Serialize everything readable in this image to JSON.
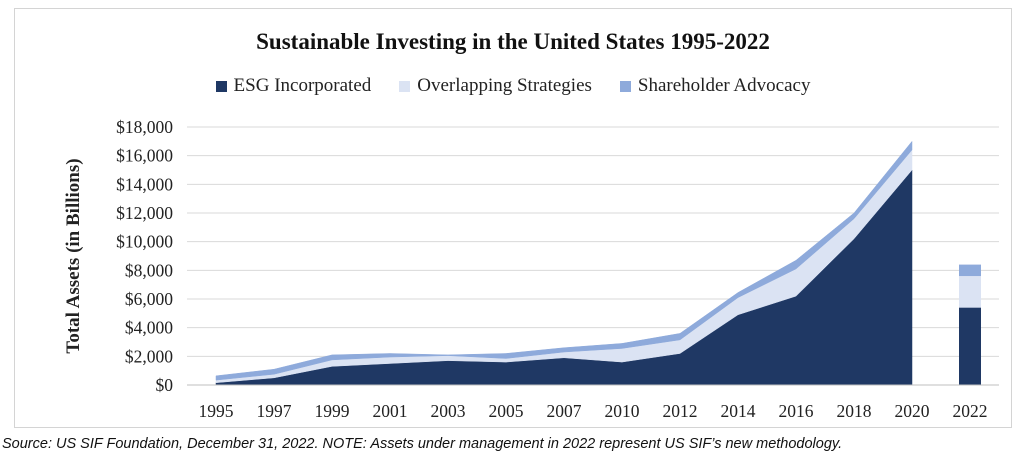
{
  "chart_data": {
    "type": "area",
    "title": "Sustainable Investing in the United States 1995-2022",
    "xlabel": "",
    "ylabel": "Total Assets (in Billions)",
    "categories": [
      "1995",
      "1997",
      "1999",
      "2001",
      "2003",
      "2005",
      "2007",
      "2010",
      "2012",
      "2014",
      "2016",
      "2018",
      "2020",
      "2022"
    ],
    "ylim": [
      0,
      18000
    ],
    "yticks": [
      0,
      2000,
      4000,
      6000,
      8000,
      10000,
      12000,
      14000,
      16000,
      18000
    ],
    "ytick_labels": [
      "$0",
      "$2,000",
      "$4,000",
      "$6,000",
      "$8,000",
      "$10,000",
      "$12,000",
      "$14,000",
      "$16,000",
      "$18,000"
    ],
    "grid": true,
    "legend_position": "top",
    "series": [
      {
        "name": "ESG Incorporated",
        "color": "#1f3864",
        "values": [
          160,
          500,
          1300,
          1500,
          1700,
          1600,
          1900,
          1600,
          2200,
          4900,
          6200,
          10200,
          15000,
          5400
        ]
      },
      {
        "name": "Overlapping Strategies",
        "color": "#dbe3f3",
        "values": [
          180,
          250,
          450,
          450,
          350,
          250,
          400,
          950,
          950,
          1200,
          1900,
          1400,
          1400,
          2200
        ]
      },
      {
        "name": "Shareholder Advocacy",
        "color": "#8eaadb",
        "values": [
          300,
          350,
          350,
          250,
          50,
          350,
          300,
          350,
          450,
          350,
          600,
          400,
          600,
          800
        ]
      }
    ],
    "note": "Year 2022 shown as a separate stacked bar"
  },
  "source_note": "Source: US SIF Foundation, December 31, 2022. NOTE: Assets under management in 2022 represent US SIF’s new methodology."
}
